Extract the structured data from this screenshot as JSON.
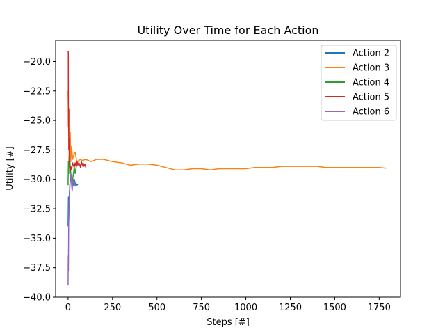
{
  "chart_data": {
    "type": "line",
    "title": "Utility Over Time for Each Action",
    "xlabel": "Steps [#]",
    "ylabel": "Utility [#]",
    "xlim": [
      -70,
      1870
    ],
    "ylim": [
      -40,
      -18.2
    ],
    "xticks": [
      0,
      250,
      500,
      750,
      1000,
      1250,
      1500,
      1750
    ],
    "yticks": [
      -40.0,
      -37.5,
      -35.0,
      -32.5,
      -30.0,
      -27.5,
      -25.0,
      -22.5,
      -20.0
    ],
    "xtick_labels": [
      "0",
      "250",
      "500",
      "750",
      "1000",
      "1250",
      "1500",
      "1750"
    ],
    "ytick_labels": [
      "−40.0",
      "−37.5",
      "−35.0",
      "−32.5",
      "−30.0",
      "−27.5",
      "−25.0",
      "−22.5",
      "−20.0"
    ],
    "grid": false,
    "legend_position": "top-right",
    "series": [
      {
        "name": "Action 2",
        "color": "#1f77b4",
        "x": [
          0,
          2,
          4,
          6,
          8,
          10,
          14,
          18,
          22,
          26,
          30,
          35,
          40,
          45,
          50,
          55
        ],
        "y": [
          -34.0,
          -31.5,
          -33.5,
          -32.0,
          -31.0,
          -30.5,
          -30.0,
          -29.8,
          -30.2,
          -30.6,
          -30.4,
          -30.0,
          -30.3,
          -30.6,
          -30.4,
          -30.5
        ]
      },
      {
        "name": "Action 3",
        "color": "#ff7f0e",
        "x": [
          0,
          3,
          6,
          9,
          12,
          15,
          20,
          25,
          30,
          40,
          50,
          60,
          70,
          80,
          100,
          130,
          160,
          200,
          250,
          300,
          350,
          400,
          450,
          500,
          550,
          600,
          650,
          700,
          750,
          800,
          850,
          900,
          950,
          1000,
          1050,
          1100,
          1150,
          1200,
          1250,
          1300,
          1350,
          1400,
          1450,
          1500,
          1550,
          1600,
          1650,
          1700,
          1750,
          1790
        ],
        "y": [
          -22.5,
          -26.0,
          -24.0,
          -28.0,
          -26.0,
          -28.5,
          -27.2,
          -28.3,
          -28.0,
          -27.7,
          -28.6,
          -28.4,
          -28.3,
          -28.4,
          -28.3,
          -28.5,
          -28.3,
          -28.3,
          -28.5,
          -28.6,
          -28.8,
          -28.7,
          -28.7,
          -28.8,
          -29.0,
          -29.2,
          -29.2,
          -29.1,
          -29.1,
          -29.2,
          -29.1,
          -29.1,
          -29.1,
          -29.1,
          -29.0,
          -29.0,
          -29.0,
          -28.9,
          -28.9,
          -28.9,
          -28.9,
          -28.9,
          -29.0,
          -29.0,
          -29.0,
          -29.0,
          -29.0,
          -29.0,
          -29.0,
          -29.05
        ]
      },
      {
        "name": "Action 4",
        "color": "#2ca02c",
        "x": [
          0,
          2,
          4,
          6,
          8,
          10,
          14,
          18,
          22,
          26,
          30,
          35,
          40,
          45,
          50
        ],
        "y": [
          -30.5,
          -28.5,
          -29.5,
          -28.0,
          -29.0,
          -28.5,
          -29.3,
          -29.8,
          -30.4,
          -30.0,
          -29.5,
          -29.0,
          -29.5,
          -29.0,
          -28.7
        ]
      },
      {
        "name": "Action 5",
        "color": "#d62728",
        "x": [
          0,
          1,
          2,
          3,
          4,
          5,
          7,
          9,
          12,
          15,
          20,
          25,
          30,
          35,
          40,
          45,
          50,
          55,
          60,
          65,
          70,
          75,
          80,
          85,
          90,
          95,
          100
        ],
        "y": [
          -19.1,
          -19.2,
          -25.5,
          -24.0,
          -27.5,
          -26.5,
          -28.5,
          -28.7,
          -29.3,
          -28.9,
          -29.2,
          -28.6,
          -28.8,
          -29.0,
          -28.6,
          -28.9,
          -28.5,
          -28.8,
          -28.6,
          -28.7,
          -29.0,
          -28.5,
          -28.8,
          -28.6,
          -28.9,
          -28.7,
          -29.0
        ]
      },
      {
        "name": "Action 6",
        "color": "#9467bd",
        "x": [
          0,
          1,
          2,
          3,
          4,
          6,
          8,
          10,
          12,
          15,
          18,
          20,
          23,
          26,
          30,
          35,
          40
        ],
        "y": [
          -39.0,
          -36.5,
          -37.8,
          -34.5,
          -32.5,
          -31.8,
          -31.5,
          -30.5,
          -30.0,
          -29.5,
          -29.8,
          -30.5,
          -31.0,
          -30.3,
          -30.0,
          -30.4,
          -30.6
        ]
      }
    ]
  }
}
